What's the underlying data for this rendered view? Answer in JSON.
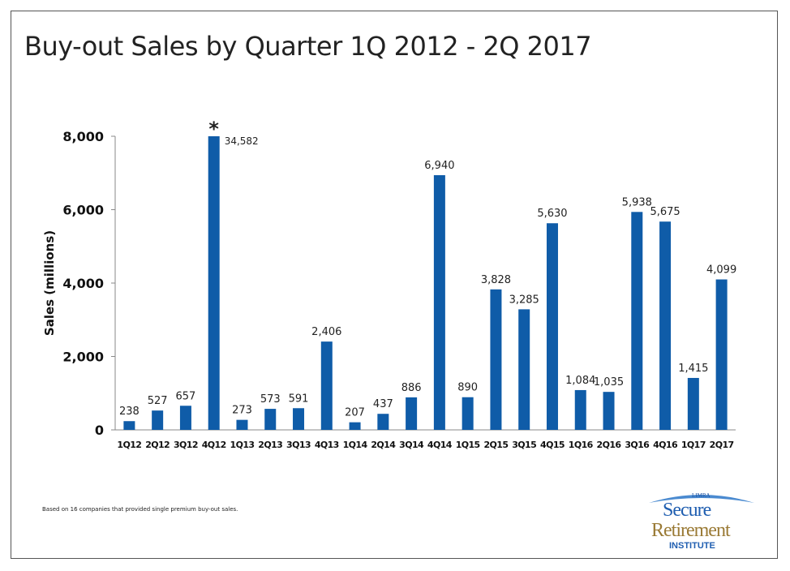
{
  "chart_data": {
    "type": "bar",
    "title": "Buy-out Sales by Quarter 1Q 2012 - 2Q 2017",
    "xlabel": "",
    "ylabel": "Sales (millions)",
    "ylim": [
      0,
      8000
    ],
    "yticks": [
      0,
      2000,
      4000,
      6000,
      8000
    ],
    "ytick_labels": [
      "0",
      "2,000",
      "4,000",
      "6,000",
      "8,000"
    ],
    "grid": false,
    "bar_color": "#0f5ca8",
    "categories": [
      "1Q12",
      "2Q12",
      "3Q12",
      "4Q12",
      "1Q13",
      "2Q13",
      "3Q13",
      "4Q13",
      "1Q14",
      "2Q14",
      "3Q14",
      "4Q14",
      "1Q15",
      "2Q15",
      "3Q15",
      "4Q15",
      "1Q16",
      "2Q16",
      "3Q16",
      "4Q16",
      "1Q17",
      "2Q17"
    ],
    "values": [
      238,
      527,
      657,
      34582,
      273,
      573,
      591,
      2406,
      207,
      437,
      886,
      6940,
      890,
      3828,
      3285,
      5630,
      1084,
      1035,
      5938,
      5675,
      1415,
      4099
    ],
    "value_labels": [
      "238",
      "527",
      "657",
      "34,582",
      "273",
      "573",
      "591",
      "2,406",
      "207",
      "437",
      "886",
      "6,940",
      "890",
      "3,828",
      "3,285",
      "5,630",
      "1,084",
      "1,035",
      "5,938",
      "5,675",
      "1,415",
      "4,099"
    ],
    "annotations": [
      {
        "category": "4Q12",
        "text": "*",
        "note": "bar truncated at axis maximum"
      }
    ]
  },
  "footnote": "Based on 16 companies  that provided  single premium  buy-out sales.",
  "logo": {
    "top": "LIMRA",
    "line1": "Secure",
    "line2": "Retirement",
    "line3": "INSTITUTE"
  }
}
